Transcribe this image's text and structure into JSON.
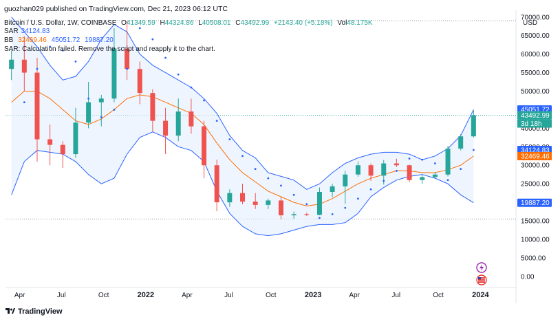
{
  "header": {
    "publisher": "guozhan029 published on TradingView.com, Dec 21, 2023 06:12 UTC",
    "symbol": "Bitcoin / U.S. Dollar, 1W, COINBASE",
    "ohlc": {
      "o_label": "O",
      "o": "41349.59",
      "h_label": "H",
      "h": "44324.86",
      "l_label": "L",
      "l": "40508.01",
      "c_label": "C",
      "c": "43492.99",
      "change": "+2143.40 (+5.18%)",
      "vol_label": "Vol",
      "vol": "48.175K"
    },
    "sar_label": "SAR",
    "sar_value": "34124.83",
    "bb_label": "BB",
    "bb_mid": "32469.46",
    "bb_upper": "45051.72",
    "bb_lower": "19887.20",
    "warning": "SAR: Calculation failed. Remove the script and reapply it to the chart."
  },
  "price_axis": {
    "currency": "USD",
    "ticks": [
      "70000.00",
      "65000.00",
      "60000.00",
      "55000.00",
      "50000.00",
      "45000.00",
      "40000.00",
      "35000.00",
      "30000.00",
      "25000.00",
      "20000.00",
      "15000.00",
      "10000.00",
      "5000.00",
      "0.00"
    ],
    "badges": {
      "upper": "45051.72",
      "close": "43492.99",
      "countdown": "3d 18h",
      "sar": "34124.83",
      "mid": "32469.46",
      "lower": "19887.20"
    }
  },
  "time_axis": {
    "labels": [
      "Apr",
      "Jul",
      "Oct",
      "2022",
      "Apr",
      "Jul",
      "Oct",
      "2023",
      "Apr",
      "Jul",
      "Oct",
      "2024"
    ]
  },
  "footer": {
    "brand": "TradingView"
  },
  "colors": {
    "up": "#26a69a",
    "down": "#ef5350",
    "sar": "#2962ff",
    "bb_band": "#2962ff",
    "bb_mid": "#ff6d00",
    "bb_fill": "#e3effd"
  },
  "chart_data": {
    "type": "candlestick",
    "title": "Bitcoin / U.S. Dollar, 1W, COINBASE",
    "ylim": [
      -3000,
      72000
    ],
    "xlim": [
      "2021-03-07",
      "2024-02-25"
    ],
    "x_dates": [
      "2021-03-14",
      "2021-04-11",
      "2021-05-09",
      "2021-06-06",
      "2021-07-04",
      "2021-08-01",
      "2021-08-29",
      "2021-09-26",
      "2021-10-24",
      "2021-11-21",
      "2021-12-19",
      "2022-01-16",
      "2022-02-13",
      "2022-03-13",
      "2022-04-10",
      "2022-05-08",
      "2022-06-05",
      "2022-07-03",
      "2022-07-31",
      "2022-08-28",
      "2022-09-25",
      "2022-10-23",
      "2022-11-20",
      "2022-12-18",
      "2023-01-15",
      "2023-02-12",
      "2023-03-12",
      "2023-04-09",
      "2023-05-07",
      "2023-06-04",
      "2023-07-02",
      "2023-07-30",
      "2023-08-27",
      "2023-09-24",
      "2023-10-22",
      "2023-11-19",
      "2023-12-17"
    ],
    "candles": [
      {
        "o": 56000,
        "h": 61000,
        "l": 53000,
        "c": 58500
      },
      {
        "o": 58500,
        "h": 64800,
        "l": 50000,
        "c": 55000
      },
      {
        "o": 55000,
        "h": 59000,
        "l": 31000,
        "c": 37000
      },
      {
        "o": 37000,
        "h": 41000,
        "l": 30000,
        "c": 35500
      },
      {
        "o": 35500,
        "h": 36500,
        "l": 29300,
        "c": 33000
      },
      {
        "o": 33000,
        "h": 45500,
        "l": 32000,
        "c": 41500
      },
      {
        "o": 41500,
        "h": 52500,
        "l": 40000,
        "c": 47000
      },
      {
        "o": 47000,
        "h": 49000,
        "l": 40500,
        "c": 48000
      },
      {
        "o": 48000,
        "h": 67000,
        "l": 47000,
        "c": 61500
      },
      {
        "o": 61500,
        "h": 69000,
        "l": 53000,
        "c": 56000
      },
      {
        "o": 56000,
        "h": 58000,
        "l": 46500,
        "c": 49500
      },
      {
        "o": 49500,
        "h": 50500,
        "l": 39000,
        "c": 42000
      },
      {
        "o": 42000,
        "h": 45500,
        "l": 33000,
        "c": 38000
      },
      {
        "o": 38000,
        "h": 48000,
        "l": 36500,
        "c": 44500
      },
      {
        "o": 44500,
        "h": 48000,
        "l": 38500,
        "c": 40500
      },
      {
        "o": 40500,
        "h": 42000,
        "l": 26500,
        "c": 30000
      },
      {
        "o": 30000,
        "h": 31500,
        "l": 17600,
        "c": 20000
      },
      {
        "o": 20000,
        "h": 23500,
        "l": 18800,
        "c": 22500
      },
      {
        "o": 22500,
        "h": 25000,
        "l": 19500,
        "c": 20200
      },
      {
        "o": 20200,
        "h": 22500,
        "l": 18200,
        "c": 19300
      },
      {
        "o": 19300,
        "h": 21000,
        "l": 18200,
        "c": 20500
      },
      {
        "o": 20500,
        "h": 21500,
        "l": 15500,
        "c": 16500
      },
      {
        "o": 16500,
        "h": 17500,
        "l": 15600,
        "c": 16800
      },
      {
        "o": 16800,
        "h": 17200,
        "l": 16300,
        "c": 16600
      },
      {
        "o": 16600,
        "h": 24000,
        "l": 16500,
        "c": 22800
      },
      {
        "o": 22800,
        "h": 25000,
        "l": 21400,
        "c": 24300
      },
      {
        "o": 24300,
        "h": 28500,
        "l": 19600,
        "c": 27500
      },
      {
        "o": 27500,
        "h": 31000,
        "l": 26900,
        "c": 30000
      },
      {
        "o": 30000,
        "h": 30500,
        "l": 25800,
        "c": 27200
      },
      {
        "o": 27200,
        "h": 31400,
        "l": 24800,
        "c": 30500
      },
      {
        "o": 30500,
        "h": 31800,
        "l": 29500,
        "c": 30000
      },
      {
        "o": 30000,
        "h": 30200,
        "l": 25500,
        "c": 26000
      },
      {
        "o": 26000,
        "h": 27500,
        "l": 25000,
        "c": 26800
      },
      {
        "o": 26800,
        "h": 28200,
        "l": 26500,
        "c": 27500
      },
      {
        "o": 27500,
        "h": 35200,
        "l": 27000,
        "c": 34500
      },
      {
        "o": 34500,
        "h": 38400,
        "l": 34000,
        "c": 37800
      },
      {
        "o": 37800,
        "h": 44800,
        "l": 37500,
        "c": 43492.99
      }
    ],
    "bb_upper": [
      70000,
      66000,
      62000,
      57000,
      53000,
      54000,
      58000,
      64000,
      68000,
      66000,
      60000,
      57000,
      55000,
      53000,
      51000,
      48000,
      44000,
      38000,
      34000,
      32000,
      28000,
      27000,
      26000,
      23500,
      25000,
      28000,
      30500,
      32000,
      33000,
      33500,
      33500,
      33000,
      31500,
      32500,
      34500,
      38000,
      45051.72
    ],
    "bb_mid": [
      47000,
      50000,
      50000,
      48000,
      45000,
      42000,
      41000,
      42500,
      45000,
      48000,
      49000,
      48500,
      47000,
      45500,
      44000,
      41000,
      36000,
      31500,
      28000,
      25500,
      23000,
      21500,
      20000,
      19000,
      19500,
      21000,
      23000,
      25000,
      26500,
      27500,
      28500,
      28500,
      28000,
      28000,
      28800,
      30000,
      32469.46
    ],
    "bb_lower": [
      22000,
      31000,
      34000,
      33500,
      33000,
      31000,
      27500,
      25000,
      26500,
      33000,
      37500,
      39000,
      37500,
      35000,
      34000,
      31000,
      23000,
      17000,
      13500,
      11500,
      11000,
      11500,
      12500,
      13500,
      14000,
      14000,
      14500,
      17000,
      21500,
      24000,
      26000,
      27000,
      27500,
      26500,
      25000,
      22000,
      19887.2
    ],
    "sar": [
      null,
      47000,
      56000,
      62000,
      61000,
      58000,
      48000,
      43000,
      45000,
      56000,
      67000,
      64000,
      59000,
      54500,
      51000,
      47500,
      42000,
      37000,
      32500,
      29000,
      26500,
      24500,
      22000,
      19500,
      15800,
      16800,
      18500,
      21000,
      23500,
      25800,
      28500,
      31800,
      31500,
      30500,
      26000,
      29000,
      34124.83
    ]
  }
}
